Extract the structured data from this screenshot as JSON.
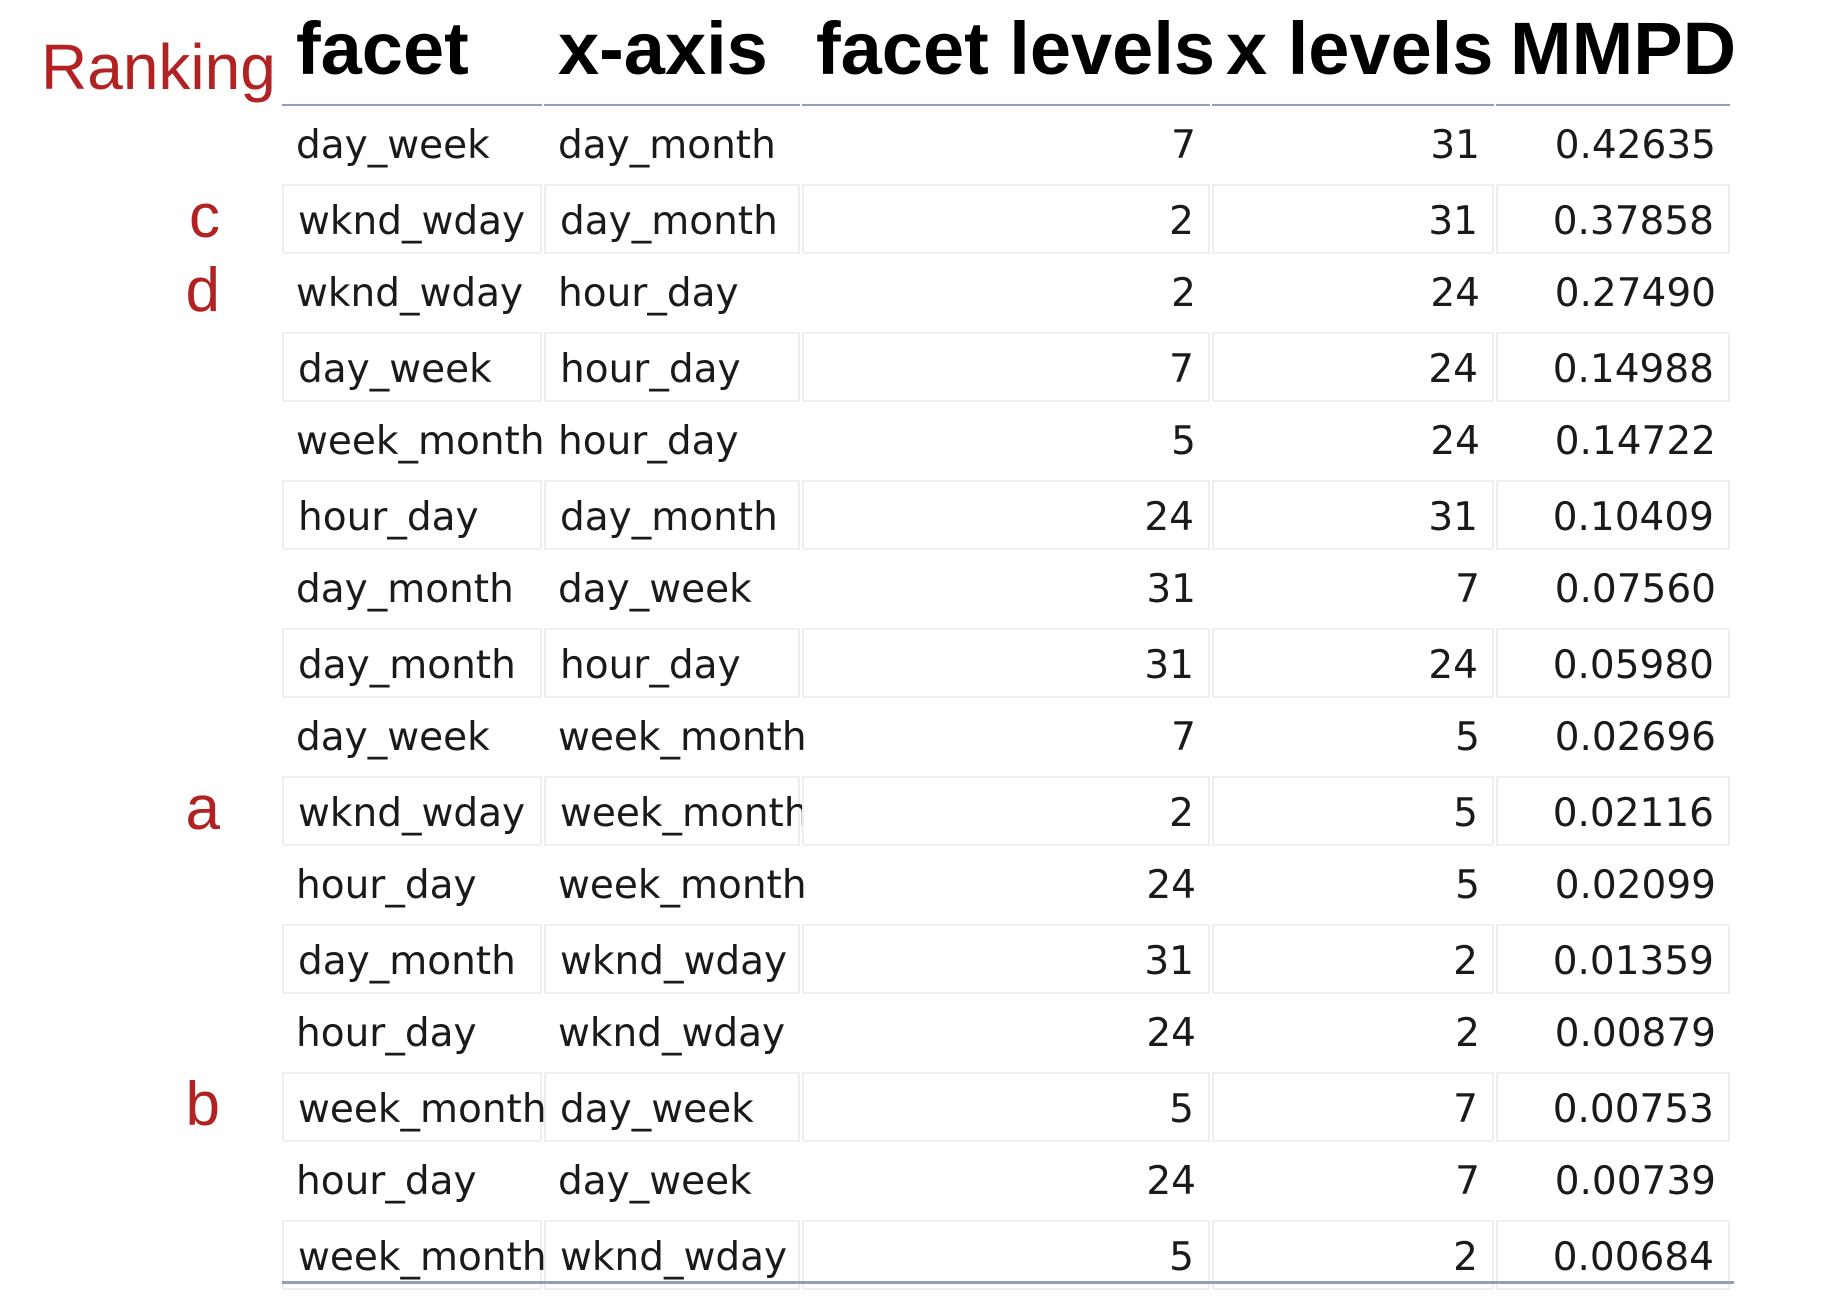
{
  "side_labels": {
    "title": "Ranking",
    "markers": [
      {
        "row_index": 1,
        "text": "c"
      },
      {
        "row_index": 2,
        "text": "d"
      },
      {
        "row_index": 9,
        "text": "a"
      },
      {
        "row_index": 13,
        "text": "b"
      }
    ]
  },
  "chart_data": {
    "type": "table",
    "columns": [
      "facet",
      "x-axis",
      "facet levels",
      "x levels",
      "MMPD"
    ],
    "rows": [
      {
        "facet": "day_week",
        "x_axis": "day_month",
        "facet_levels": "7",
        "x_levels": "31",
        "mmpd": "0.42635"
      },
      {
        "facet": "wknd_wday",
        "x_axis": "day_month",
        "facet_levels": "2",
        "x_levels": "31",
        "mmpd": "0.37858"
      },
      {
        "facet": "wknd_wday",
        "x_axis": "hour_day",
        "facet_levels": "2",
        "x_levels": "24",
        "mmpd": "0.27490"
      },
      {
        "facet": "day_week",
        "x_axis": "hour_day",
        "facet_levels": "7",
        "x_levels": "24",
        "mmpd": "0.14988"
      },
      {
        "facet": "week_month",
        "x_axis": "hour_day",
        "facet_levels": "5",
        "x_levels": "24",
        "mmpd": "0.14722"
      },
      {
        "facet": "hour_day",
        "x_axis": "day_month",
        "facet_levels": "24",
        "x_levels": "31",
        "mmpd": "0.10409"
      },
      {
        "facet": "day_month",
        "x_axis": "day_week",
        "facet_levels": "31",
        "x_levels": "7",
        "mmpd": "0.07560"
      },
      {
        "facet": "day_month",
        "x_axis": "hour_day",
        "facet_levels": "31",
        "x_levels": "24",
        "mmpd": "0.05980"
      },
      {
        "facet": "day_week",
        "x_axis": "week_month",
        "facet_levels": "7",
        "x_levels": "5",
        "mmpd": "0.02696"
      },
      {
        "facet": "wknd_wday",
        "x_axis": "week_month",
        "facet_levels": "2",
        "x_levels": "5",
        "mmpd": "0.02116"
      },
      {
        "facet": "hour_day",
        "x_axis": "week_month",
        "facet_levels": "24",
        "x_levels": "5",
        "mmpd": "0.02099"
      },
      {
        "facet": "day_month",
        "x_axis": "wknd_wday",
        "facet_levels": "31",
        "x_levels": "2",
        "mmpd": "0.01359"
      },
      {
        "facet": "hour_day",
        "x_axis": "wknd_wday",
        "facet_levels": "24",
        "x_levels": "2",
        "mmpd": "0.00879"
      },
      {
        "facet": "week_month",
        "x_axis": "day_week",
        "facet_levels": "5",
        "x_levels": "7",
        "mmpd": "0.00753"
      },
      {
        "facet": "hour_day",
        "x_axis": "day_week",
        "facet_levels": "24",
        "x_levels": "7",
        "mmpd": "0.00739"
      },
      {
        "facet": "week_month",
        "x_axis": "wknd_wday",
        "facet_levels": "5",
        "x_levels": "2",
        "mmpd": "0.00684"
      }
    ]
  },
  "colors": {
    "marker": "#b22222",
    "rule": "#8fa0b8",
    "cell_border": "#eeeeee"
  }
}
